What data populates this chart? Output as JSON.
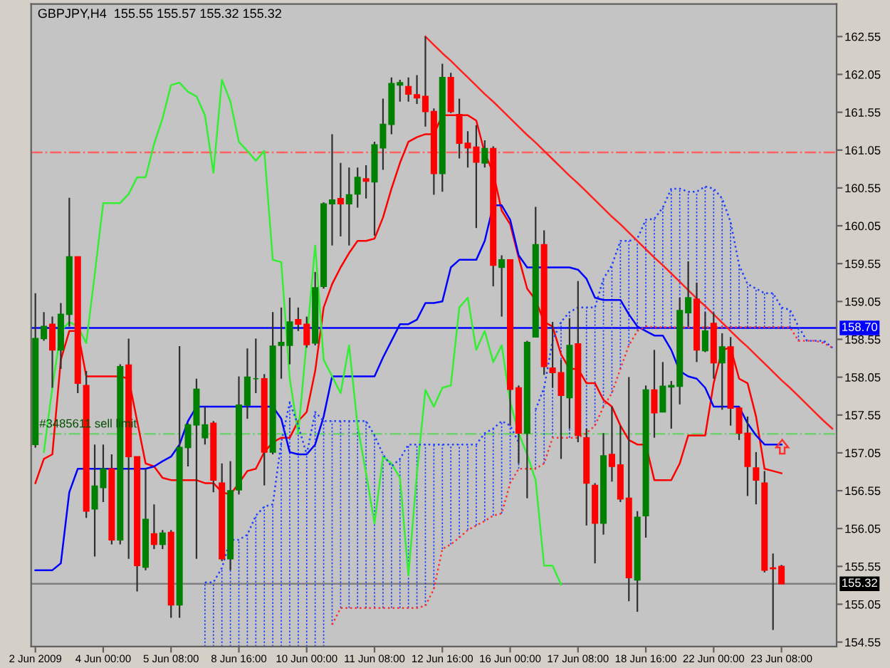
{
  "chart_data": {
    "type": "candlestick",
    "title": "GBPJPY,H4  155.55 155.57 155.32 155.32",
    "categories": [
      "2 Jun 2009",
      null,
      null,
      null,
      null,
      null,
      null,
      null,
      "4 Jun 00:00",
      null,
      null,
      null,
      null,
      null,
      null,
      null,
      "5 Jun 08:00",
      null,
      null,
      null,
      null,
      null,
      null,
      null,
      "8 Jun 16:00",
      null,
      null,
      null,
      null,
      null,
      null,
      null,
      "10 Jun 00:00",
      null,
      null,
      null,
      null,
      null,
      null,
      null,
      "11 Jun 08:00",
      null,
      null,
      null,
      null,
      null,
      null,
      null,
      "12 Jun 16:00",
      null,
      null,
      null,
      null,
      null,
      null,
      null,
      "16 Jun 00:00",
      null,
      null,
      null,
      null,
      null,
      null,
      null,
      "17 Jun 08:00",
      null,
      null,
      null,
      null,
      null,
      null,
      null,
      "18 Jun 16:00",
      null,
      null,
      null,
      null,
      null,
      null,
      null,
      "22 Jun 00:00",
      null,
      null,
      null,
      null,
      null,
      null,
      null,
      "23 Jun 08:00",
      null,
      null,
      null,
      null,
      null,
      null
    ],
    "ohlc": [
      [
        157.16,
        159.16,
        157.12,
        158.56
      ],
      [
        158.56,
        158.91,
        158.53,
        158.72
      ],
      [
        158.75,
        158.85,
        157.91,
        158.41
      ],
      [
        158.41,
        159.03,
        158.16,
        158.88
      ],
      [
        158.88,
        160.42,
        158.72,
        159.64
      ],
      [
        159.64,
        159.64,
        157.84,
        157.97
      ],
      [
        157.94,
        158.13,
        156.19,
        156.28
      ],
      [
        156.31,
        157.16,
        155.68,
        156.61
      ],
      [
        156.59,
        157.16,
        156.4,
        156.84
      ],
      [
        156.84,
        157.03,
        155.84,
        155.9
      ],
      [
        155.9,
        158.22,
        155.84,
        158.19
      ],
      [
        158.21,
        158.56,
        155.65,
        157.0
      ],
      [
        157.0,
        157.0,
        155.22,
        155.56
      ],
      [
        155.54,
        156.84,
        155.5,
        156.17
      ],
      [
        155.98,
        156.37,
        155.78,
        155.84
      ],
      [
        155.84,
        156.03,
        155.78,
        155.99
      ],
      [
        156.0,
        156.03,
        154.87,
        155.04
      ],
      [
        155.04,
        158.46,
        154.87,
        157.12
      ],
      [
        157.12,
        157.44,
        156.87,
        157.42
      ],
      [
        157.42,
        158.03,
        155.65,
        157.89
      ],
      [
        157.25,
        157.66,
        157.16,
        157.42
      ],
      [
        157.44,
        157.47,
        156.53,
        156.69
      ],
      [
        156.65,
        156.91,
        155.62,
        155.65
      ],
      [
        155.65,
        156.94,
        155.5,
        156.55
      ],
      [
        156.56,
        158.06,
        156.5,
        157.68
      ],
      [
        157.68,
        158.43,
        157.5,
        158.05
      ],
      [
        158.03,
        158.56,
        157.84,
        158.03
      ],
      [
        158.03,
        158.09,
        156.62,
        157.06
      ],
      [
        157.06,
        158.91,
        157.03,
        158.46
      ],
      [
        158.47,
        158.97,
        158.03,
        158.51
      ],
      [
        158.47,
        159.1,
        158.22,
        158.78
      ],
      [
        158.81,
        158.97,
        158.66,
        158.75
      ],
      [
        158.75,
        158.85,
        158.44,
        158.48
      ],
      [
        158.5,
        159.44,
        158.47,
        159.23
      ],
      [
        159.25,
        160.36,
        159.22,
        160.34
      ],
      [
        160.34,
        161.26,
        159.79,
        160.39
      ],
      [
        160.41,
        160.88,
        159.91,
        160.34
      ],
      [
        160.34,
        160.82,
        159.79,
        160.46
      ],
      [
        160.47,
        160.82,
        160.29,
        160.69
      ],
      [
        160.67,
        160.85,
        160.41,
        160.64
      ],
      [
        160.63,
        161.16,
        159.92,
        161.12
      ],
      [
        161.08,
        161.73,
        160.79,
        161.39
      ],
      [
        161.39,
        162.01,
        161.26,
        161.93
      ],
      [
        161.91,
        161.98,
        161.69,
        161.94
      ],
      [
        161.89,
        162.01,
        161.69,
        161.79
      ],
      [
        161.78,
        162.04,
        161.66,
        161.74
      ],
      [
        161.76,
        162.55,
        161.36,
        161.56
      ],
      [
        161.56,
        161.6,
        160.46,
        160.74
      ],
      [
        160.74,
        162.19,
        160.5,
        162.01
      ],
      [
        162.01,
        162.07,
        161.54,
        161.56
      ],
      [
        161.52,
        161.73,
        160.94,
        161.14
      ],
      [
        161.14,
        161.3,
        160.82,
        161.08
      ],
      [
        161.09,
        161.38,
        160.02,
        160.89
      ],
      [
        160.88,
        161.18,
        160.82,
        161.07
      ],
      [
        161.07,
        161.1,
        159.25,
        159.53
      ],
      [
        159.5,
        159.66,
        158.85,
        159.6
      ],
      [
        159.6,
        159.6,
        157.41,
        157.89
      ],
      [
        157.91,
        157.94,
        156.91,
        157.31
      ],
      [
        157.31,
        158.53,
        156.45,
        158.51
      ],
      [
        158.58,
        160.3,
        158.58,
        159.8
      ],
      [
        159.8,
        159.99,
        158.08,
        158.19
      ],
      [
        158.17,
        158.78,
        157.91,
        158.11
      ],
      [
        158.11,
        158.28,
        156.97,
        157.81
      ],
      [
        157.78,
        158.83,
        157.37,
        158.47
      ],
      [
        158.49,
        159.32,
        157.19,
        157.28
      ],
      [
        157.25,
        157.37,
        156.09,
        156.65
      ],
      [
        156.62,
        156.65,
        155.59,
        156.12
      ],
      [
        156.12,
        157.31,
        155.97,
        157.01
      ],
      [
        157.03,
        157.66,
        156.67,
        156.87
      ],
      [
        156.89,
        157.41,
        156.4,
        156.44
      ],
      [
        156.45,
        158.05,
        155.09,
        155.4
      ],
      [
        155.37,
        156.28,
        154.95,
        156.2
      ],
      [
        156.22,
        157.94,
        155.93,
        157.88
      ],
      [
        157.88,
        158.41,
        157.25,
        157.58
      ],
      [
        157.59,
        158.25,
        157.59,
        157.93
      ],
      [
        157.92,
        158.0,
        157.37,
        157.94
      ],
      [
        157.93,
        159.1,
        157.69,
        158.93
      ],
      [
        158.9,
        159.58,
        158.72,
        159.1
      ],
      [
        159.08,
        159.3,
        158.25,
        158.41
      ],
      [
        158.4,
        158.91,
        158.38,
        158.66
      ],
      [
        158.76,
        158.9,
        158.03,
        158.24
      ],
      [
        158.24,
        158.63,
        157.62,
        158.45
      ],
      [
        158.45,
        158.58,
        157.41,
        157.64
      ],
      [
        157.64,
        157.66,
        157.22,
        157.31
      ],
      [
        157.31,
        157.53,
        156.48,
        156.87
      ],
      [
        156.85,
        157.06,
        156.37,
        156.69
      ],
      [
        156.65,
        156.81,
        155.47,
        155.5
      ],
      [
        155.53,
        155.72,
        154.71,
        155.52
      ],
      [
        155.55,
        155.57,
        155.32,
        155.32
      ],
      null,
      null,
      null,
      null,
      null,
      null
    ],
    "colors": [
      "#008000",
      "#008000",
      "#ff0000",
      "#008000",
      "#008000",
      "#ff0000",
      "#ff0000",
      "#008000",
      "#008000",
      "#ff0000",
      "#008000",
      "#ff0000",
      "#ff0000",
      "#008000",
      "#ff0000",
      "#008000",
      "#ff0000",
      "#008000",
      "#008000",
      "#008000",
      "#008000",
      "#ff0000",
      "#ff0000",
      "#008000",
      "#008000",
      "#008000",
      "#008000",
      "#ff0000",
      "#008000",
      "#008000",
      "#008000",
      "#ff0000",
      "#ff0000",
      "#008000",
      "#008000",
      "#008000",
      "#ff0000",
      "#008000",
      "#008000",
      "#ff0000",
      "#008000",
      "#008000",
      "#008000",
      "#008000",
      "#ff0000",
      "#ff0000",
      "#ff0000",
      "#ff0000",
      "#008000",
      "#ff0000",
      "#ff0000",
      "#ff0000",
      "#ff0000",
      "#008000",
      "#ff0000",
      "#008000",
      "#ff0000",
      "#ff0000",
      "#008000",
      "#008000",
      "#ff0000",
      "#ff0000",
      "#ff0000",
      "#008000",
      "#ff0000",
      "#ff0000",
      "#ff0000",
      "#008000",
      "#ff0000",
      "#ff0000",
      "#ff0000",
      "#008000",
      "#008000",
      "#ff0000",
      "#008000",
      "#008000",
      "#008000",
      "#008000",
      "#ff0000",
      "#008000",
      "#ff0000",
      "#008000",
      "#ff0000",
      "#ff0000",
      "#ff0000",
      "#ff0000",
      "#ff0000",
      "#ff0000",
      "#ff0000",
      null,
      null,
      null,
      null,
      null,
      null
    ],
    "series": [
      {
        "type": "line",
        "color": "#ff0000",
        "line_style": "solid",
        "values": [
          156.65,
          156.97,
          157.03,
          158.28,
          158.66,
          158.66,
          158.06,
          158.06,
          158.06,
          158.06,
          158.06,
          158.03,
          157.47,
          156.91,
          156.87,
          156.72,
          156.69,
          156.69,
          156.69,
          156.69,
          156.65,
          156.65,
          156.53,
          156.5,
          156.65,
          156.81,
          156.84,
          157.06,
          157.19,
          157.25,
          157.25,
          157.47,
          157.59,
          158.13,
          158.97,
          159.28,
          159.5,
          159.69,
          159.85,
          159.85,
          159.88,
          160.16,
          160.54,
          160.88,
          161.16,
          161.22,
          161.26,
          161.26,
          161.51,
          161.51,
          161.51,
          161.51,
          161.44,
          161.01,
          160.75,
          160.25,
          160.07,
          159.63,
          159.22,
          159.07,
          158.78,
          158.72,
          158.35,
          158.16,
          158.16,
          157.97,
          157.97,
          157.75,
          157.66,
          157.41,
          157.22,
          157.16,
          157.16,
          156.69,
          156.69,
          156.69,
          156.91,
          157.28,
          157.28,
          157.28,
          157.97,
          158.41,
          158.44,
          158.03,
          157.97,
          157.53,
          156.84,
          156.81,
          156.78,
          null,
          null,
          null,
          null,
          null,
          null
        ]
      },
      {
        "type": "line",
        "color": "#0000ff",
        "line_style": "solid",
        "values": [
          155.5,
          155.5,
          155.5,
          155.59,
          156.53,
          156.84,
          156.84,
          156.84,
          156.84,
          156.84,
          156.84,
          156.84,
          156.84,
          156.84,
          156.87,
          156.94,
          157.0,
          157.16,
          157.47,
          157.66,
          157.66,
          157.66,
          157.66,
          157.66,
          157.66,
          157.66,
          157.66,
          157.66,
          157.66,
          157.5,
          157.06,
          157.03,
          157.03,
          157.16,
          157.53,
          158.06,
          158.06,
          158.06,
          158.06,
          158.06,
          158.06,
          158.31,
          158.53,
          158.75,
          158.75,
          158.81,
          159.03,
          159.03,
          159.05,
          159.5,
          159.6,
          159.6,
          159.6,
          159.85,
          160.32,
          160.32,
          160.13,
          159.66,
          159.5,
          159.5,
          159.5,
          159.5,
          159.5,
          159.5,
          159.47,
          159.35,
          159.1,
          159.07,
          159.07,
          159.07,
          158.88,
          158.72,
          158.66,
          158.6,
          158.6,
          158.41,
          158.13,
          158.06,
          158.03,
          157.91,
          157.66,
          157.66,
          157.66,
          157.66,
          157.44,
          157.28,
          157.16,
          157.16,
          157.16,
          null,
          null,
          null,
          null,
          null,
          null
        ]
      },
      {
        "type": "line",
        "color": "#33ee33",
        "line_style": "solid",
        "values": [
          null,
          157.06,
          157.91,
          158.66,
          158.78,
          158.72,
          158.5,
          159.41,
          160.35,
          160.35,
          160.35,
          160.47,
          160.69,
          160.69,
          161.13,
          161.47,
          161.91,
          161.94,
          161.82,
          161.76,
          161.51,
          160.75,
          161.98,
          161.69,
          161.16,
          161.04,
          160.91,
          161.04,
          159.6,
          159.57,
          158.03,
          157.31,
          158.53,
          159.79,
          158.28,
          158.06,
          157.84,
          158.47,
          157.41,
          156.78,
          156.12,
          157.0,
          156.91,
          156.72,
          155.43,
          156.78,
          157.88,
          157.66,
          157.91,
          157.94,
          158.97,
          159.1,
          158.41,
          158.66,
          158.25,
          158.47,
          157.72,
          157.31,
          157.03,
          156.69,
          155.56,
          155.56,
          155.31,
          null,
          null,
          null,
          null,
          null,
          null,
          null,
          null,
          null,
          null,
          null,
          null,
          null,
          null,
          null,
          null,
          null,
          null,
          null,
          null,
          null,
          null,
          null,
          null,
          null,
          null,
          null,
          null,
          null,
          null,
          null,
          null
        ]
      },
      {
        "type": "line",
        "color": "#ff3030",
        "line_style": "dotted",
        "values": [
          null,
          null,
          null,
          null,
          null,
          null,
          null,
          null,
          null,
          null,
          null,
          null,
          null,
          null,
          null,
          null,
          null,
          null,
          null,
          null,
          null,
          null,
          null,
          null,
          null,
          null,
          null,
          null,
          null,
          null,
          null,
          null,
          null,
          null,
          null,
          154.78,
          155.0,
          155.0,
          155.0,
          155.0,
          155.0,
          155.0,
          155.0,
          155.0,
          155.0,
          155.0,
          155.03,
          155.25,
          155.78,
          155.84,
          155.93,
          156.03,
          156.09,
          156.15,
          156.22,
          156.25,
          156.65,
          156.84,
          156.84,
          156.84,
          156.91,
          157.25,
          157.25,
          157.25,
          157.25,
          157.31,
          157.41,
          157.66,
          157.84,
          158.16,
          158.47,
          158.66,
          158.72,
          158.71,
          158.71,
          158.71,
          158.71,
          158.71,
          158.71,
          158.71,
          158.71,
          158.71,
          158.71,
          158.71,
          158.71,
          158.71,
          158.71,
          158.71,
          158.71,
          158.71,
          158.53,
          158.53,
          158.53,
          158.5,
          158.44
        ]
      },
      {
        "type": "line",
        "color": "#2040ff",
        "line_style": "dotted",
        "values": [
          null,
          null,
          null,
          null,
          null,
          null,
          null,
          null,
          null,
          null,
          null,
          null,
          null,
          null,
          null,
          null,
          null,
          null,
          null,
          null,
          155.34,
          155.34,
          155.53,
          155.9,
          155.9,
          155.97,
          156.22,
          156.34,
          156.37,
          157.19,
          157.72,
          157.41,
          157.03,
          157.59,
          157.47,
          157.47,
          157.47,
          157.47,
          157.47,
          157.47,
          157.28,
          157.03,
          156.87,
          156.97,
          157.16,
          157.16,
          157.16,
          157.16,
          157.16,
          157.16,
          157.16,
          157.16,
          157.16,
          157.31,
          157.37,
          157.47,
          157.41,
          157.19,
          null,
          157.62,
          157.91,
          158.53,
          158.78,
          158.91,
          158.97,
          158.97,
          158.97,
          159.35,
          159.53,
          159.85,
          159.85,
          159.88,
          160.13,
          160.14,
          160.29,
          160.54,
          160.54,
          160.5,
          160.5,
          160.57,
          160.54,
          160.41,
          160.1,
          159.53,
          159.28,
          159.22,
          159.16,
          159.16,
          158.97,
          158.94,
          158.72,
          158.53,
          158.53,
          158.53,
          158.44
        ]
      },
      {
        "type": "line",
        "color": "#ff2020",
        "line_style": "solid",
        "values": [
          null,
          null,
          null,
          null,
          null,
          null,
          null,
          null,
          null,
          null,
          null,
          null,
          null,
          null,
          null,
          null,
          null,
          null,
          null,
          null,
          null,
          null,
          null,
          null,
          null,
          null,
          null,
          null,
          null,
          null,
          null,
          null,
          null,
          null,
          null,
          null,
          null,
          null,
          null,
          null,
          null,
          null,
          null,
          null,
          null,
          null,
          162.55,
          162.44,
          162.33,
          162.23,
          162.12,
          162.01,
          161.9,
          161.79,
          161.69,
          161.58,
          161.47,
          161.36,
          161.25,
          161.15,
          161.04,
          160.93,
          160.82,
          160.71,
          160.61,
          160.5,
          160.39,
          160.28,
          160.17,
          160.07,
          159.96,
          159.85,
          159.74,
          159.63,
          159.53,
          159.42,
          159.31,
          159.2,
          159.09,
          158.99,
          158.88,
          158.77,
          158.66,
          158.55,
          158.45,
          158.34,
          158.23,
          158.12,
          158.01,
          157.91,
          157.8,
          157.69,
          157.58,
          157.47,
          157.37
        ]
      }
    ],
    "ref_lines": [
      {
        "axis": "y",
        "value": 161.02,
        "color": "#ff6060",
        "line_style": "dashdot"
      },
      {
        "axis": "y",
        "value": 157.3,
        "label": "#3485611 sell limit",
        "color": "#70d070",
        "line_style": "dashdot"
      },
      {
        "axis": "y",
        "value": 158.7,
        "label": "158.70",
        "color": "#0000ff",
        "line_style": "solid"
      },
      {
        "axis": "y",
        "value": 155.32,
        "label": "155.32",
        "color": "#808080",
        "line_style": "solid"
      }
    ],
    "ylim": [
      154.49,
      162.98
    ],
    "yticks": [
      154.55,
      155.05,
      155.55,
      156.05,
      156.55,
      157.05,
      157.55,
      158.05,
      158.55,
      159.05,
      159.55,
      160.05,
      160.55,
      161.05,
      161.55,
      162.05,
      162.55
    ],
    "grid": false
  }
}
